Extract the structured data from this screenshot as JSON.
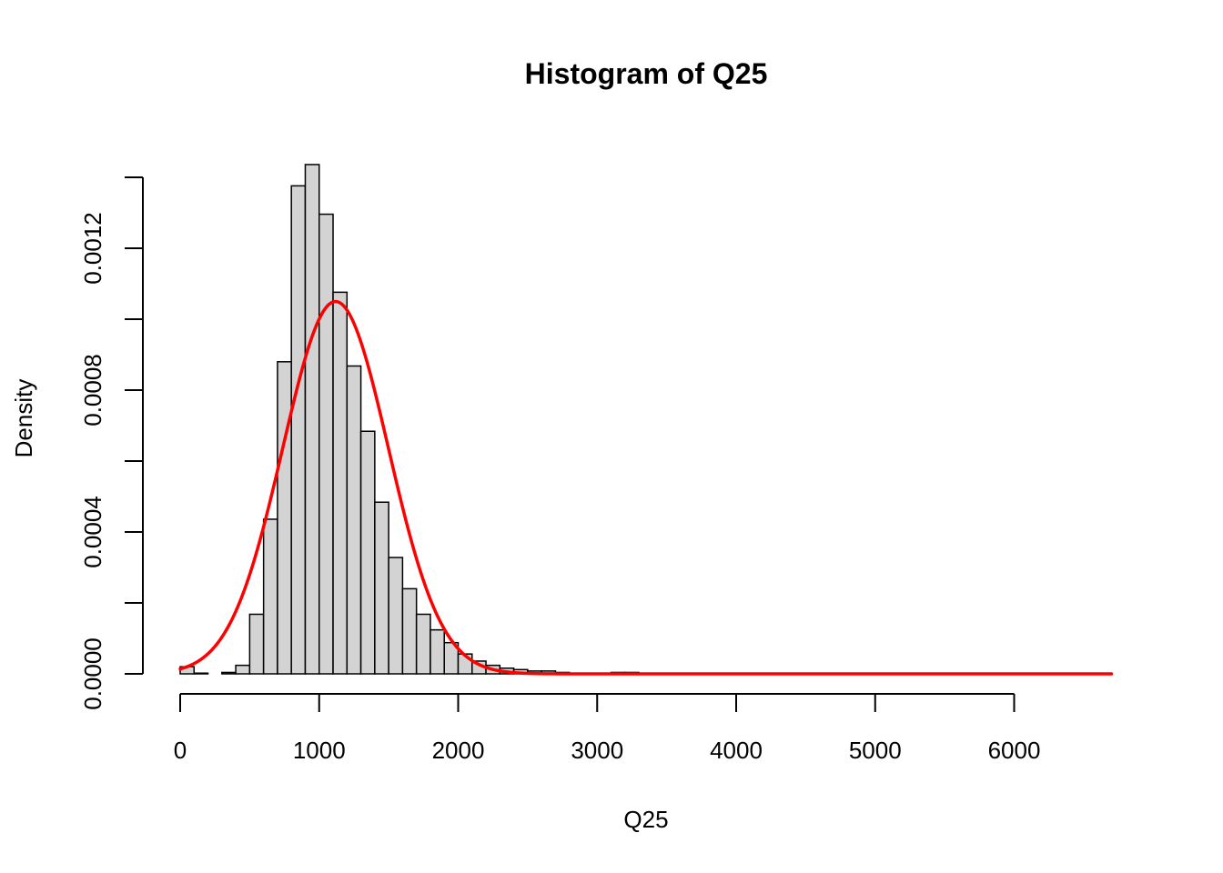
{
  "colors": {
    "bar_fill": "#d3d3d3",
    "bar_stroke": "#000000",
    "curve": "#ff0000"
  },
  "chart_data": {
    "type": "bar",
    "title": "Histogram of Q25",
    "xlabel": "Q25",
    "ylabel": "Density",
    "grid": false,
    "legend": "none",
    "xlim": [
      0,
      6700
    ],
    "ylim": [
      0,
      0.0014
    ],
    "x_ticks": [
      0,
      1000,
      2000,
      3000,
      4000,
      5000,
      6000
    ],
    "x_tick_labels": [
      "0",
      "1000",
      "2000",
      "3000",
      "4000",
      "5000",
      "6000"
    ],
    "y_ticks": [
      0,
      0.0002,
      0.0004,
      0.0006,
      0.0008,
      0.001,
      0.0012,
      0.0014
    ],
    "y_tick_labels": [
      "0.0000",
      "",
      "0.0004",
      "",
      "0.0008",
      "",
      "0.0012",
      ""
    ],
    "bin_width": 100,
    "bin_starts": [
      0,
      100,
      200,
      300,
      400,
      500,
      600,
      700,
      800,
      900,
      1000,
      1100,
      1200,
      1300,
      1400,
      1500,
      1600,
      1700,
      1800,
      1900,
      2000,
      2100,
      2200,
      2300,
      2400,
      2500,
      2600,
      2700,
      3100,
      3200
    ],
    "densities": [
      2e-05,
      2e-06,
      0.0,
      4e-06,
      2.4e-05,
      0.000168,
      0.000436,
      0.00088,
      0.001376,
      0.001436,
      0.001296,
      0.001076,
      0.000868,
      0.000684,
      0.000484,
      0.000328,
      0.00024,
      0.000168,
      0.000124,
      8.8e-05,
      5.6e-05,
      3.6e-05,
      2.4e-05,
      1.6e-05,
      1.2e-05,
      8e-06,
      8e-06,
      4e-06,
      4e-06,
      4e-06
    ],
    "series": [
      {
        "type": "line",
        "mean": 1118,
        "sd": 380,
        "x_range": [
          0,
          6700
        ]
      }
    ]
  }
}
